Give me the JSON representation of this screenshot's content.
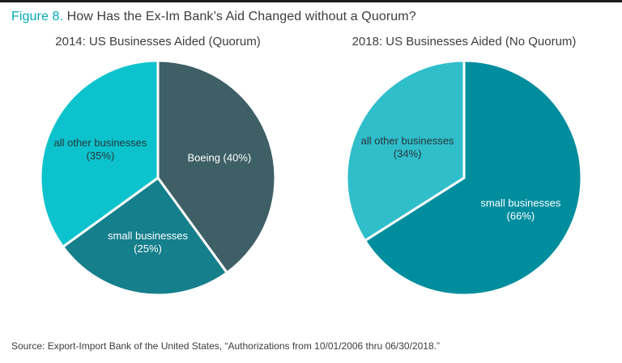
{
  "header": {
    "figure_label": "Figure 8.",
    "title": "How Has the Ex-Im Bank’s Aid Changed without a Quorum?"
  },
  "colors": {
    "accent": "#00a9b7",
    "title_text": "#3d3d3d",
    "top_border": "#1c1c1c",
    "slice_separator": "#ffffff"
  },
  "chart_data": [
    {
      "type": "pie",
      "title": "2014: US Businesses Aided (Quorum)",
      "start_angle_deg": 0,
      "direction": "clockwise",
      "legend_position": "none",
      "slices": [
        {
          "id": "boeing",
          "label": "Boeing",
          "value": 40,
          "color": "#3e5f66",
          "label_color": "#ffffff",
          "label_lines": [
            "Boeing (40%)"
          ]
        },
        {
          "id": "small-businesses",
          "label": "small businesses",
          "value": 25,
          "color": "#157f8c",
          "label_color": "#ffffff",
          "label_lines": [
            "small businesses",
            "(25%)"
          ]
        },
        {
          "id": "all-other-businesses",
          "label": "all other businesses",
          "value": 35,
          "color": "#0cc3cd",
          "label_color": "#28363c",
          "label_lines": [
            "all other businesses",
            "(35%)"
          ]
        }
      ]
    },
    {
      "type": "pie",
      "title": "2018: US Businesses Aided (No Quorum)",
      "start_angle_deg": 0,
      "direction": "clockwise",
      "legend_position": "none",
      "slices": [
        {
          "id": "small-businesses",
          "label": "small businesses",
          "value": 66,
          "color": "#008d9e",
          "label_color": "#ffffff",
          "label_lines": [
            "small businesses",
            "(66%)"
          ]
        },
        {
          "id": "all-other-businesses",
          "label": "all other businesses",
          "value": 34,
          "color": "#2fbeca",
          "label_color": "#28363c",
          "label_lines": [
            "all other businesses",
            "(34%)"
          ]
        }
      ]
    }
  ],
  "source": "Source: Export-Import Bank of the United States, “Authorizations from 10/01/2006 thru 06/30/2018.”"
}
